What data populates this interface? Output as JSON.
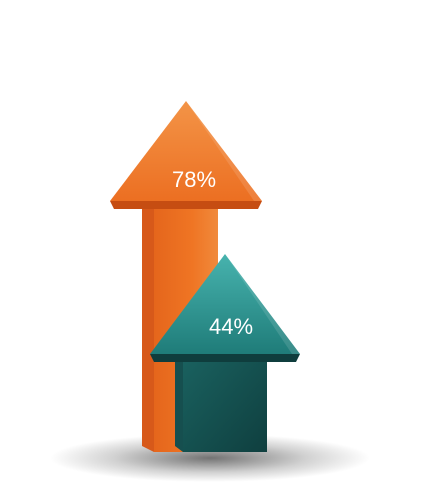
{
  "chart_data": {
    "type": "bar",
    "categories": [],
    "series": [
      {
        "values": [
          78,
          44
        ]
      }
    ],
    "labels": [
      "78%",
      "44%"
    ],
    "ylim": [
      0,
      100
    ],
    "grid": false,
    "colors": {
      "arrow_1_front": "#ef7524",
      "arrow_1_light": "#f3893a",
      "arrow_1_side": "#d7591a",
      "arrow_1_dark": "#c64d12",
      "arrow_2_front": "#1e6d6b",
      "arrow_2_light": "#3aa6a3",
      "arrow_2_side": "#164f4f",
      "arrow_2_dark": "#0f3d3d"
    },
    "mark_style": "3d-arrow"
  }
}
